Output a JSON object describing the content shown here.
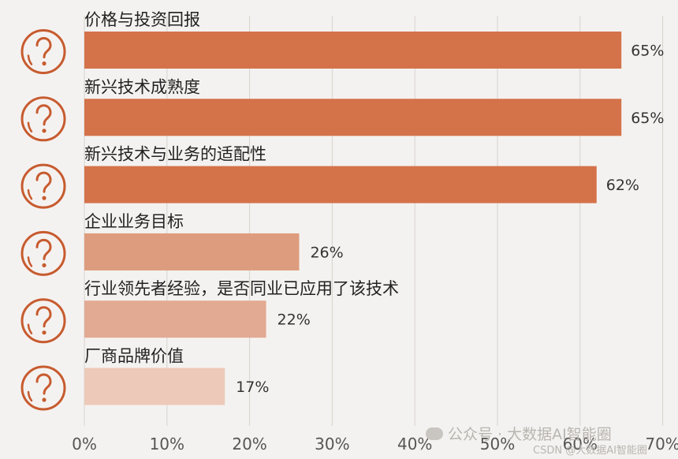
{
  "chart_data": {
    "type": "bar",
    "orientation": "horizontal",
    "categories": [
      "价格与投资回报",
      "新兴技术成熟度",
      "新兴技术与业务的适配性",
      "企业业务目标",
      "行业领先者经验，是否同业已应用了该技术",
      "厂商品牌价值"
    ],
    "values": [
      65,
      65,
      62,
      26,
      22,
      17
    ],
    "value_labels": [
      "65%",
      "65%",
      "62%",
      "26%",
      "22%",
      "17%"
    ],
    "xlim": [
      0,
      70
    ],
    "xticks": [
      "0%",
      "10%",
      "20%",
      "30%",
      "40%",
      "50%",
      "60%",
      "70%"
    ],
    "grid": "vertical",
    "bar_colors": [
      "#d4724a",
      "#d4724a",
      "#d4724a",
      "#dd9c7d",
      "#e2aa92",
      "#ecc9b9"
    ],
    "icon": "question-mark-icon",
    "icon_color": "#c75b2f"
  },
  "watermark": {
    "line1": "公众号 · 大数据AI智能圈",
    "line2": "CSDN @大数据AI智能圈"
  }
}
